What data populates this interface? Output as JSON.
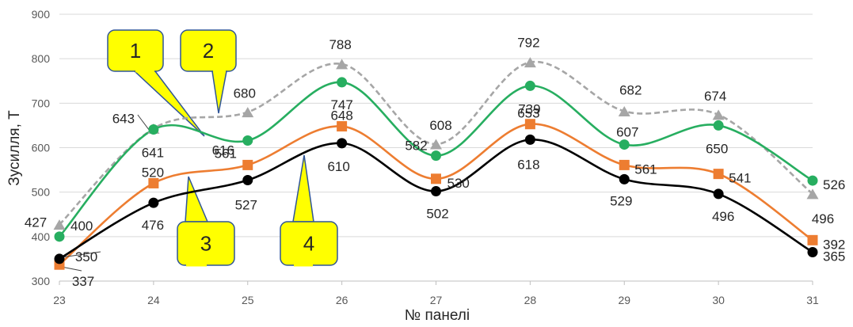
{
  "chart_data": {
    "type": "line",
    "xlabel": "№ панелі",
    "ylabel": "Зусилля, Т",
    "ylim": [
      300,
      900
    ],
    "yticks": [
      "300",
      "400",
      "500",
      "600",
      "700",
      "800",
      "900"
    ],
    "x": [
      23,
      24,
      25,
      26,
      27,
      28,
      29,
      30,
      31
    ],
    "x_tick_labels": [
      "23",
      "24",
      "25",
      "26",
      "27",
      "28",
      "29",
      "30",
      "31"
    ],
    "grid": "horizontal",
    "series": [
      {
        "key": "s2",
        "marker": "triangle",
        "dashed": true,
        "color": "#a6a6a6",
        "values": [
          427,
          643,
          680,
          788,
          608,
          792,
          682,
          674,
          496
        ],
        "labels": [
          "427",
          "643",
          "680",
          "788",
          "608",
          "792",
          "682",
          "674",
          "496"
        ]
      },
      {
        "key": "s1",
        "marker": "circle",
        "dashed": false,
        "color": "#27ae60",
        "values": [
          400,
          641,
          616,
          747,
          582,
          739,
          607,
          650,
          526
        ],
        "labels": [
          "400",
          "641",
          "616",
          "747",
          "582",
          "739",
          "607",
          "650",
          "526"
        ]
      },
      {
        "key": "s3",
        "marker": "square",
        "dashed": false,
        "color": "#ed7d31",
        "values": [
          337,
          520,
          561,
          648,
          530,
          653,
          561,
          541,
          392
        ],
        "labels": [
          "337",
          "520",
          "561",
          "648",
          "530",
          "653",
          "561",
          "541",
          "392"
        ]
      },
      {
        "key": "s4",
        "marker": "circle",
        "dashed": false,
        "color": "#000000",
        "values": [
          350,
          476,
          527,
          610,
          502,
          618,
          529,
          496,
          365
        ],
        "labels": [
          "350",
          "476",
          "527",
          "610",
          "502",
          "618",
          "529",
          "496",
          "365"
        ]
      }
    ],
    "callouts": [
      {
        "text": "1",
        "series": "s1",
        "fill": "#ffff00"
      },
      {
        "text": "2",
        "series": "s2",
        "fill": "#ffff00"
      },
      {
        "text": "3",
        "series": "s3",
        "fill": "#ffff00"
      },
      {
        "text": "4",
        "series": "s4",
        "fill": "#ffff00"
      }
    ]
  }
}
